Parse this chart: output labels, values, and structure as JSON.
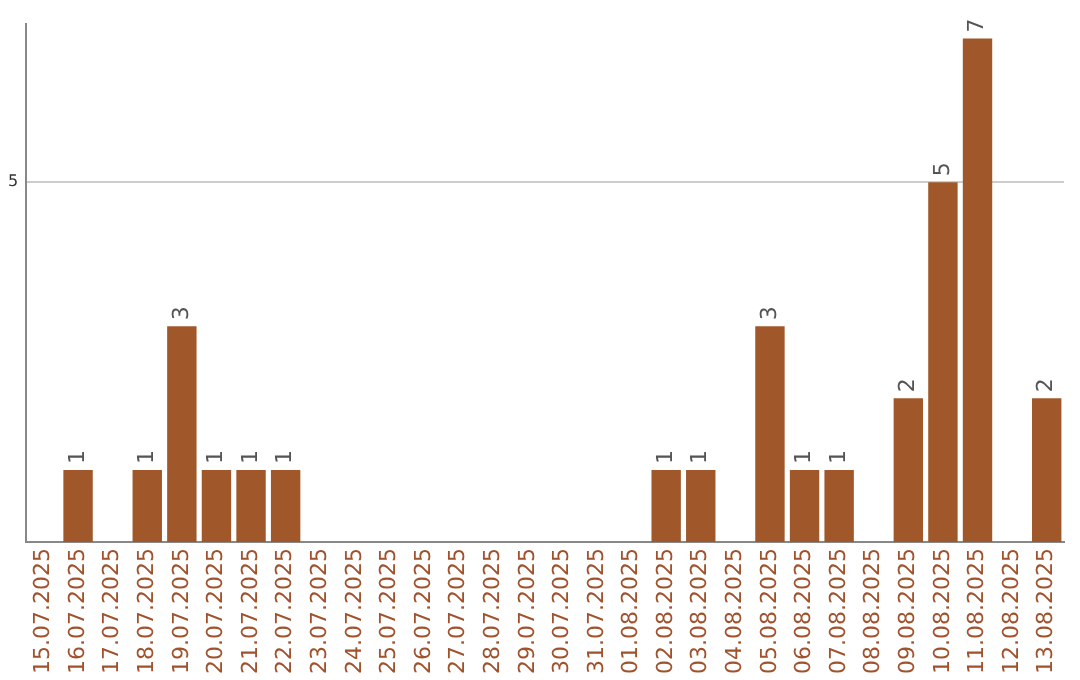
{
  "chart_data": {
    "type": "bar",
    "categories": [
      "15.07.2025",
      "16.07.2025",
      "17.07.2025",
      "18.07.2025",
      "19.07.2025",
      "20.07.2025",
      "21.07.2025",
      "22.07.2025",
      "23.07.2025",
      "24.07.2025",
      "25.07.2025",
      "26.07.2025",
      "27.07.2025",
      "28.07.2025",
      "29.07.2025",
      "30.07.2025",
      "31.07.2025",
      "01.08.2025",
      "02.08.2025",
      "03.08.2025",
      "04.08.2025",
      "05.08.2025",
      "06.08.2025",
      "07.08.2025",
      "08.08.2025",
      "09.08.2025",
      "10.08.2025",
      "11.08.2025",
      "12.08.2025",
      "13.08.2025"
    ],
    "values": [
      0,
      1,
      0,
      1,
      3,
      1,
      1,
      1,
      0,
      0,
      0,
      0,
      0,
      0,
      0,
      0,
      0,
      0,
      1,
      1,
      0,
      3,
      1,
      1,
      0,
      2,
      5,
      7,
      0,
      2
    ],
    "value_labels": [
      null,
      "1",
      null,
      "1",
      "3",
      "1",
      "1",
      "1",
      null,
      null,
      null,
      null,
      null,
      null,
      null,
      null,
      null,
      null,
      "1",
      "1",
      null,
      "3",
      "1",
      "1",
      null,
      "2",
      "5",
      "7",
      null,
      "2"
    ],
    "color": "#a0582a",
    "ylim": [
      0,
      7.2
    ],
    "yticks": [
      5
    ],
    "grid": "y",
    "legend": false
  }
}
